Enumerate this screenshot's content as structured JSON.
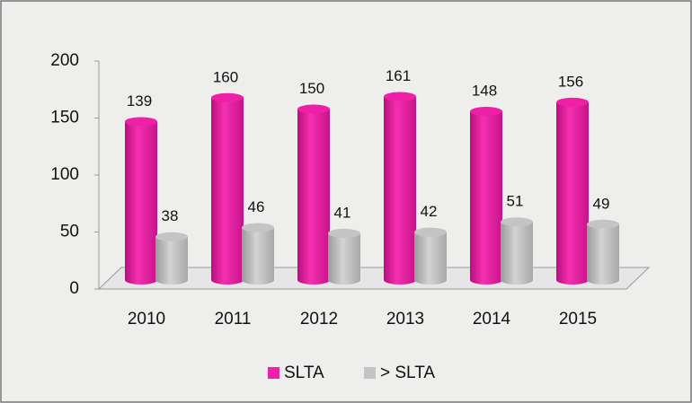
{
  "chart_data": {
    "type": "bar",
    "categories": [
      "2010",
      "2011",
      "2012",
      "2013",
      "2014",
      "2015"
    ],
    "series": [
      {
        "name": "SLTA",
        "color": "#f01fa8",
        "values": [
          139,
          160,
          150,
          161,
          148,
          156
        ]
      },
      {
        "name": "> SLTA",
        "color": "#c4c4c4",
        "values": [
          38,
          46,
          41,
          42,
          51,
          49
        ]
      }
    ],
    "ylim": [
      0,
      200
    ],
    "yticks": [
      0,
      50,
      100,
      150,
      200
    ],
    "legend": "bottom"
  }
}
